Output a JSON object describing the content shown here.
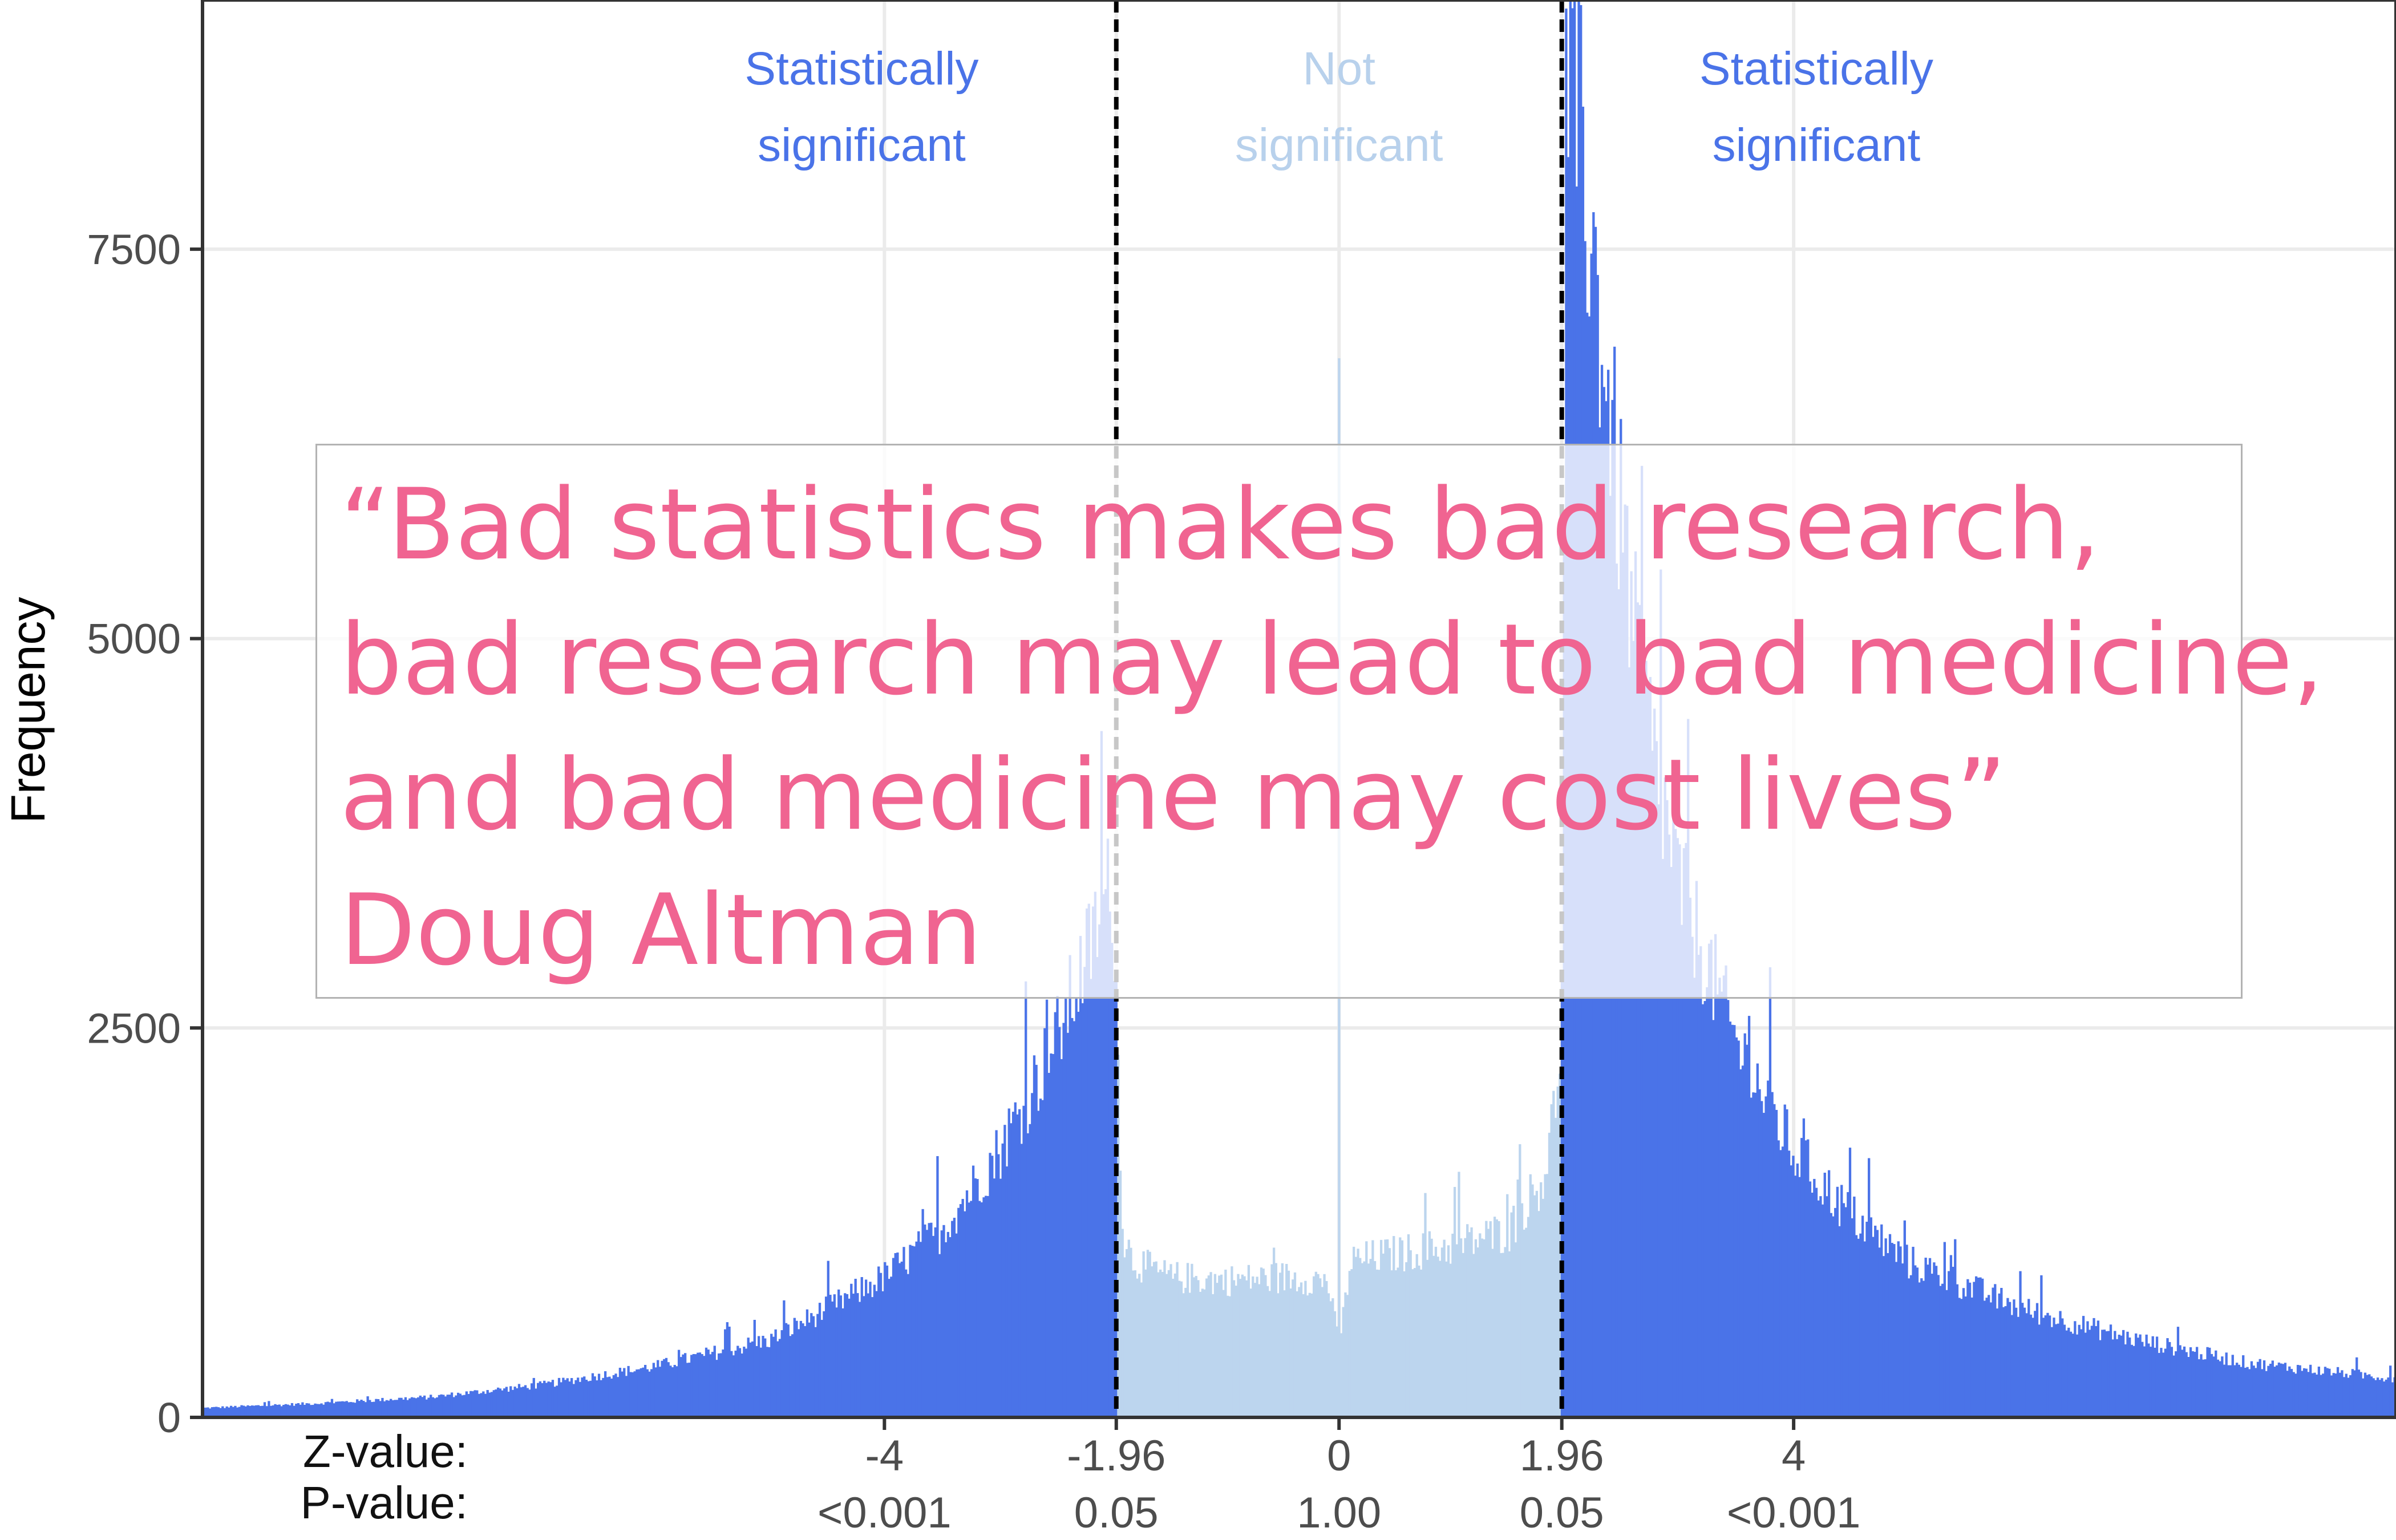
{
  "chart_data": {
    "type": "bar",
    "xlabel": "",
    "ylabel": "Frequency",
    "ylim": [
      0,
      9100
    ],
    "xlim": [
      -10,
      9.3
    ],
    "yticks": [
      0,
      2500,
      5000,
      7500
    ],
    "x_ticks": [
      {
        "z": -4,
        "z_label": "-4",
        "p_label": "<0.001"
      },
      {
        "z": -1.96,
        "z_label": "-1.96",
        "p_label": "0.05"
      },
      {
        "z": 0,
        "z_label": "0",
        "p_label": "1.00"
      },
      {
        "z": 1.96,
        "z_label": "1.96",
        "p_label": "0.05"
      },
      {
        "z": 4,
        "z_label": "4",
        "p_label": "<0.001"
      }
    ],
    "row_labels": {
      "z": "Z-value:",
      "p": "P-value:"
    },
    "thresholds": [
      -1.96,
      1.96
    ],
    "regions": [
      {
        "lines": [
          "Statistically",
          "significant"
        ],
        "center_z": -4.2,
        "color": "#4a73e8"
      },
      {
        "lines": [
          "Not",
          "significant"
        ],
        "center_z": 0,
        "color": "#b8d1ec"
      },
      {
        "lines": [
          "Statistically",
          "significant"
        ],
        "center_z": 4.2,
        "color": "#4a73e8"
      }
    ],
    "colors": {
      "significant": "#4a73e8",
      "not_significant": "#bcd5ee",
      "threshold_line": "#000000",
      "grid": "#ebebeb"
    },
    "grid": true,
    "profile_z": [
      -10,
      -9,
      -8,
      -7,
      -6,
      -5,
      -4.5,
      -4,
      -3.5,
      -3,
      -2.5,
      -2.2,
      -2.0,
      -1.96,
      -1.9,
      -1.8,
      -1.5,
      -1.0,
      -0.5,
      -0.1,
      0,
      0.1,
      0.5,
      1.0,
      1.5,
      1.8,
      1.9,
      1.96,
      2.0,
      2.05,
      2.2,
      2.4,
      2.6,
      2.8,
      3.0,
      3.5,
      4.0,
      4.5,
      5.0,
      6.0,
      7.0,
      8.0,
      9.3
    ],
    "profile_freq": [
      60,
      90,
      130,
      210,
      330,
      500,
      700,
      900,
      1200,
      1700,
      2400,
      3000,
      3450,
      2700,
      1150,
      1000,
      900,
      880,
      900,
      880,
      450,
      1000,
      1050,
      1100,
      1200,
      1550,
      2000,
      2600,
      8800,
      8600,
      7700,
      6300,
      5000,
      4100,
      3400,
      2400,
      1700,
      1300,
      1000,
      700,
      500,
      350,
      250
    ]
  },
  "quote": {
    "lines": [
      "“Bad statistics makes bad research,",
      "bad research may lead to bad medicine,",
      "and bad medicine may cost lives”",
      "Doug Altman"
    ]
  }
}
